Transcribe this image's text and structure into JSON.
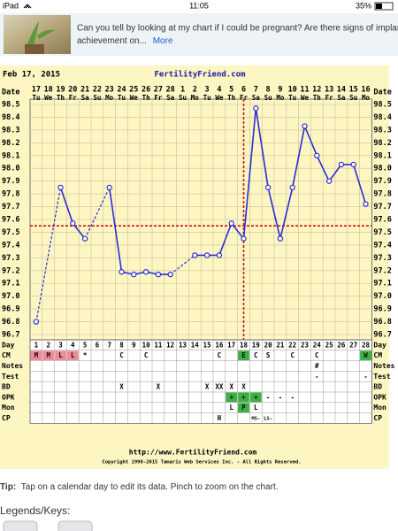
{
  "status_bar": {
    "device": "iPad",
    "time": "11:05",
    "battery": "35%"
  },
  "banner": {
    "line1": "Can you tell by looking at my chart if I could be pregnant? Are there signs of implar",
    "line2": "achievement on...",
    "link": "More"
  },
  "chart_data": {
    "type": "line",
    "date_label": "Feb 17, 2015",
    "site": "FertilityFriend.com",
    "x_label": "Date",
    "categories": [
      17,
      18,
      19,
      20,
      21,
      22,
      23,
      24,
      25,
      26,
      27,
      28,
      1,
      2,
      3,
      4,
      5,
      6,
      7,
      8,
      9,
      10,
      11,
      12,
      13,
      14,
      15,
      16
    ],
    "weekdays": [
      "Tu",
      "We",
      "Th",
      "Fr",
      "Sa",
      "Su",
      "Mo",
      "Tu",
      "We",
      "Th",
      "Fr",
      "Sa",
      "Su",
      "Mo",
      "Tu",
      "We",
      "Th",
      "Fr",
      "Sa",
      "Su",
      "Mo",
      "Tu",
      "We",
      "Th",
      "Fr",
      "Sa",
      "Su",
      "Mo"
    ],
    "values": [
      96.8,
      null,
      97.85,
      97.57,
      97.45,
      null,
      97.85,
      97.19,
      97.17,
      97.19,
      97.17,
      97.17,
      null,
      97.32,
      97.32,
      97.32,
      97.57,
      97.45,
      98.47,
      97.85,
      97.45,
      97.85,
      98.33,
      98.1,
      97.9,
      98.03,
      98.03,
      97.72
    ],
    "color": "#2b2bd6",
    "ylim": [
      96.7,
      98.5
    ],
    "yticks": [
      96.7,
      96.8,
      96.9,
      {
        "value": 97,
        "label": "97.0"
      },
      97.1,
      97.2,
      97.3,
      97.4,
      97.5,
      97.6,
      97.7,
      97.8,
      97.9,
      {
        "value": 98,
        "label": "98.0"
      },
      98.1,
      98.2,
      98.3,
      98.4,
      98.5
    ],
    "grid": true,
    "coverline": 97.55,
    "ovulation_day": 18,
    "marker_color": "#d01010",
    "rows": [
      {
        "label": "Day",
        "cells": [
          1,
          2,
          3,
          4,
          5,
          6,
          7,
          8,
          9,
          10,
          11,
          12,
          13,
          14,
          15,
          16,
          17,
          18,
          19,
          20,
          21,
          22,
          23,
          24,
          25,
          26,
          27,
          28
        ]
      },
      {
        "label": "CM",
        "cells": [
          "M",
          "M",
          "L",
          "L",
          "*",
          null,
          null,
          "C",
          null,
          "C",
          null,
          null,
          null,
          null,
          null,
          "C",
          null,
          "E",
          "C",
          "S",
          null,
          "C",
          null,
          "C",
          null,
          null,
          null,
          "W"
        ],
        "colors": [
          "#f08a9a",
          "#f08a9a",
          "#f08a9a",
          "#f08a9a",
          null,
          null,
          null,
          null,
          null,
          null,
          null,
          null,
          null,
          null,
          null,
          null,
          null,
          "#3cb043",
          null,
          null,
          null,
          null,
          null,
          null,
          null,
          null,
          null,
          "#3cb043"
        ]
      },
      {
        "label": "Notes",
        "cells": [
          null,
          null,
          null,
          null,
          null,
          null,
          null,
          null,
          null,
          null,
          null,
          null,
          null,
          null,
          null,
          null,
          null,
          null,
          null,
          null,
          null,
          null,
          null,
          "#",
          null,
          null,
          null,
          null
        ]
      },
      {
        "label": "Test",
        "cells": [
          null,
          null,
          null,
          null,
          null,
          null,
          null,
          null,
          null,
          null,
          null,
          null,
          null,
          null,
          null,
          null,
          null,
          null,
          null,
          null,
          null,
          null,
          null,
          "-",
          null,
          null,
          null,
          "-"
        ]
      },
      {
        "label": "BD",
        "cells": [
          null,
          null,
          null,
          null,
          null,
          null,
          null,
          "X",
          null,
          null,
          "X",
          null,
          null,
          null,
          "X",
          "XX",
          "X",
          "X",
          null,
          null,
          null,
          null,
          null,
          null,
          null,
          null,
          null,
          null
        ]
      },
      {
        "label": "OPK",
        "cells": [
          null,
          null,
          null,
          null,
          null,
          null,
          null,
          null,
          null,
          null,
          null,
          null,
          null,
          null,
          null,
          null,
          "+",
          "+",
          "+",
          "-",
          "-",
          "-",
          null,
          null,
          null,
          null,
          null,
          null
        ],
        "colors": [
          null,
          null,
          null,
          null,
          null,
          null,
          null,
          null,
          null,
          null,
          null,
          null,
          null,
          null,
          null,
          null,
          "#3cb043",
          "#3cb043",
          "#3cb043",
          null,
          null,
          null,
          null,
          null,
          null,
          null,
          null,
          null
        ]
      },
      {
        "label": "Mon",
        "cells": [
          null,
          null,
          null,
          null,
          null,
          null,
          null,
          null,
          null,
          null,
          null,
          null,
          null,
          null,
          null,
          null,
          "L",
          "P",
          "L",
          null,
          null,
          null,
          null,
          null,
          null,
          null,
          null,
          null
        ],
        "colors": [
          null,
          null,
          null,
          null,
          null,
          null,
          null,
          null,
          null,
          null,
          null,
          null,
          null,
          null,
          null,
          null,
          null,
          "#3cb043",
          null,
          null,
          null,
          null,
          null,
          null,
          null,
          null,
          null,
          null
        ]
      },
      {
        "label": "CP",
        "cells": [
          null,
          null,
          null,
          null,
          null,
          null,
          null,
          null,
          null,
          null,
          null,
          null,
          null,
          null,
          null,
          "H",
          null,
          null,
          "MS-",
          "LS-",
          null,
          null,
          null,
          null,
          null,
          null,
          null,
          null
        ]
      }
    ],
    "footer_url": "http://www.FertilityFriend.com",
    "copyright": "Copyright 1998-2015 Tamaris Web Services Inc. - All Rights Reserved."
  },
  "tip": {
    "label": "Tip:",
    "text": "Tap on a calendar day to edit its data. Pinch to zoom on the chart."
  },
  "legend_heading": "Legends/Keys:"
}
